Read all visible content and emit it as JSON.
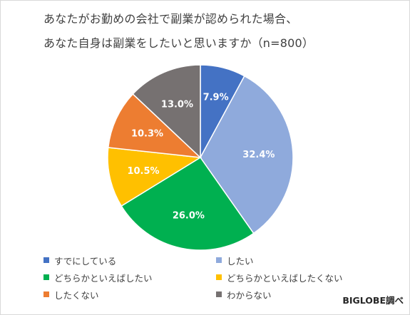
{
  "title": {
    "line1": "あなたがお勤めの会社で副業が認められた場合、",
    "line2": "あなた自身は副業をしたいと思いますか（n=800）"
  },
  "chart_data": {
    "type": "pie",
    "title": "あなたがお勤めの会社で副業が認められた場合、あなた自身は副業をしたいと思いますか（n=800）",
    "labels": [
      "すでにしている",
      "したい",
      "どちらかといえばしたい",
      "どちらかといえばしたくない",
      "したくない",
      "わからない"
    ],
    "values": [
      7.9,
      32.4,
      26.0,
      10.5,
      10.3,
      13.0
    ],
    "data_labels": [
      "7.9%",
      "32.4%",
      "26.0%",
      "10.5%",
      "10.3%",
      "13.0%"
    ],
    "colors": [
      "#4472c4",
      "#8faadc",
      "#00b050",
      "#ffc000",
      "#ed7d31",
      "#767171"
    ],
    "legend_position": "bottom"
  },
  "credit": "BIGLOBE調べ"
}
